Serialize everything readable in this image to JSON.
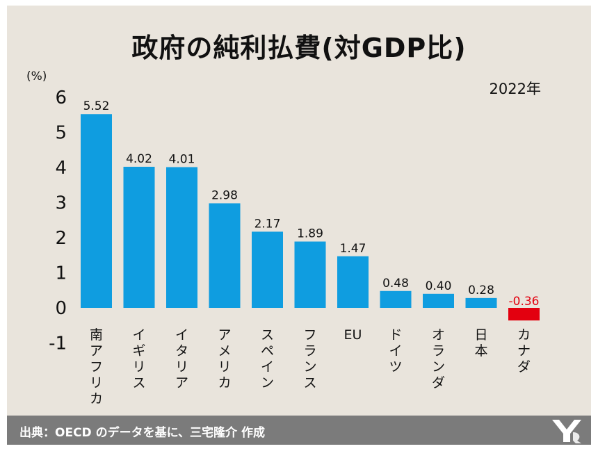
{
  "title": "政府の純利払費(対GDP比)",
  "unit_label": "(%)",
  "year_label": "2022年",
  "source": "出典：OECD のデータを基に、三宅隆介 作成",
  "colors": {
    "positive": "#0f9de0",
    "negative": "#e3000f",
    "background": "#e9e4dc",
    "footer": "#7b7b7b"
  },
  "chart_data": {
    "type": "bar",
    "categories": [
      "南アフリカ",
      "イギリス",
      "イタリア",
      "アメリカ",
      "スペイン",
      "フランス",
      "EU",
      "ドイツ",
      "オランダ",
      "日本",
      "カナダ"
    ],
    "values": [
      5.52,
      4.02,
      4.01,
      2.98,
      2.17,
      1.89,
      1.47,
      0.48,
      0.4,
      0.28,
      -0.36
    ],
    "value_labels": [
      "5.52",
      "4.02",
      "4.01",
      "2.98",
      "2.17",
      "1.89",
      "1.47",
      "0.48",
      "0.40",
      "0.28",
      "-0.36"
    ],
    "yticks": [
      "6",
      "5",
      "4",
      "3",
      "2",
      "1",
      "0",
      "-1"
    ],
    "ytick_values": [
      6,
      5,
      4,
      3,
      2,
      1,
      0,
      -1
    ],
    "ylim": [
      -1,
      6
    ],
    "grid": false,
    "legend": "none"
  }
}
